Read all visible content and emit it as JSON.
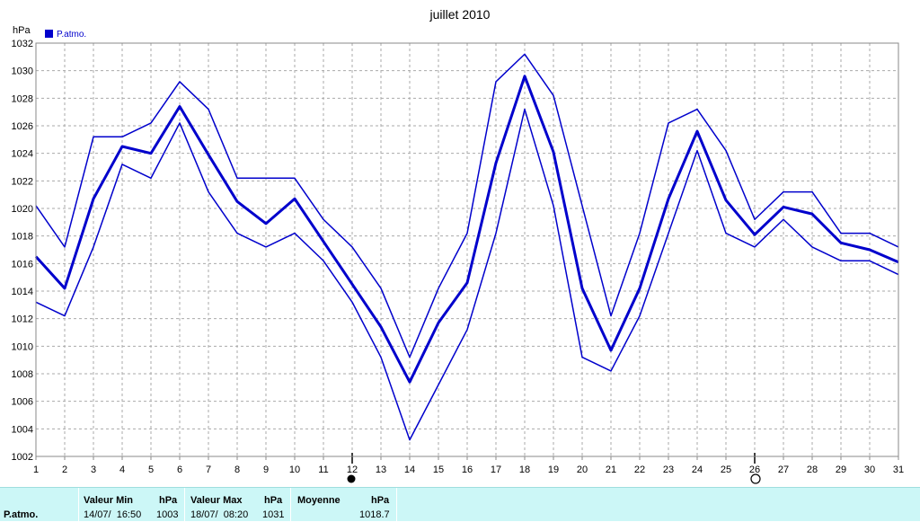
{
  "chart_data": {
    "type": "line",
    "title": "juillet 2010",
    "ylabel": "hPa",
    "ylim": [
      1002,
      1032
    ],
    "ytick_step": 2,
    "x": [
      1,
      2,
      3,
      4,
      5,
      6,
      7,
      8,
      9,
      10,
      11,
      12,
      13,
      14,
      15,
      16,
      17,
      18,
      19,
      20,
      21,
      22,
      23,
      24,
      25,
      26,
      27,
      28,
      29,
      30,
      31
    ],
    "legend": {
      "label": "P.atmo.",
      "placement": "top-left"
    },
    "grid": true,
    "moon_phases": [
      {
        "day": 12,
        "phase": "new-moon"
      },
      {
        "day": 26,
        "phase": "full-moon"
      }
    ],
    "series": [
      {
        "name": "P.atmo.",
        "role": "max",
        "values": [
          1020.2,
          1017.2,
          1025.2,
          1025.2,
          1026.2,
          1029.2,
          1027.2,
          1022.2,
          1022.2,
          1022.2,
          1019.2,
          1017.2,
          1014.2,
          1009.2,
          1014.2,
          1018.2,
          1029.2,
          1031.2,
          1028.2,
          1020.2,
          1012.2,
          1018.2,
          1026.2,
          1027.2,
          1024.2,
          1019.2,
          1021.2,
          1021.2,
          1018.2,
          1018.2,
          1017.2
        ]
      },
      {
        "name": "P.atmo.",
        "role": "mean",
        "values": [
          1016.5,
          1014.2,
          1020.7,
          1024.5,
          1024.0,
          1027.4,
          1023.9,
          1020.5,
          1018.9,
          1020.7,
          1017.6,
          1014.5,
          1011.4,
          1007.4,
          1011.7,
          1014.6,
          1023.3,
          1029.6,
          1024.1,
          1014.2,
          1009.7,
          1014.2,
          1020.7,
          1025.6,
          1020.6,
          1018.1,
          1020.1,
          1019.6,
          1017.5,
          1017.0,
          1016.1
        ]
      },
      {
        "name": "P.atmo.",
        "role": "min",
        "values": [
          1013.2,
          1012.2,
          1017.2,
          1023.2,
          1022.2,
          1026.2,
          1021.2,
          1018.2,
          1017.2,
          1018.2,
          1016.2,
          1013.2,
          1009.2,
          1003.2,
          1007.2,
          1011.2,
          1018.2,
          1027.2,
          1020.2,
          1009.2,
          1008.2,
          1012.2,
          1018.2,
          1024.2,
          1018.2,
          1017.2,
          1019.2,
          1017.2,
          1016.2,
          1016.2,
          1015.2
        ]
      }
    ],
    "colors": {
      "line": "#0000cc",
      "grid": "#aaaaaa",
      "legend_box": "#0000cc"
    }
  },
  "summary": {
    "row_label": "P.atmo.",
    "min_header": "Valeur Min",
    "min_unit": "hPa",
    "min_when": "14/07/  16:50",
    "min_value": "1003",
    "max_header": "Valeur Max",
    "max_unit": "hPa",
    "max_when": "18/07/  08:20",
    "max_value": "1031",
    "avg_header": "Moyenne",
    "avg_unit": "hPa",
    "avg_value": "1018.7"
  }
}
